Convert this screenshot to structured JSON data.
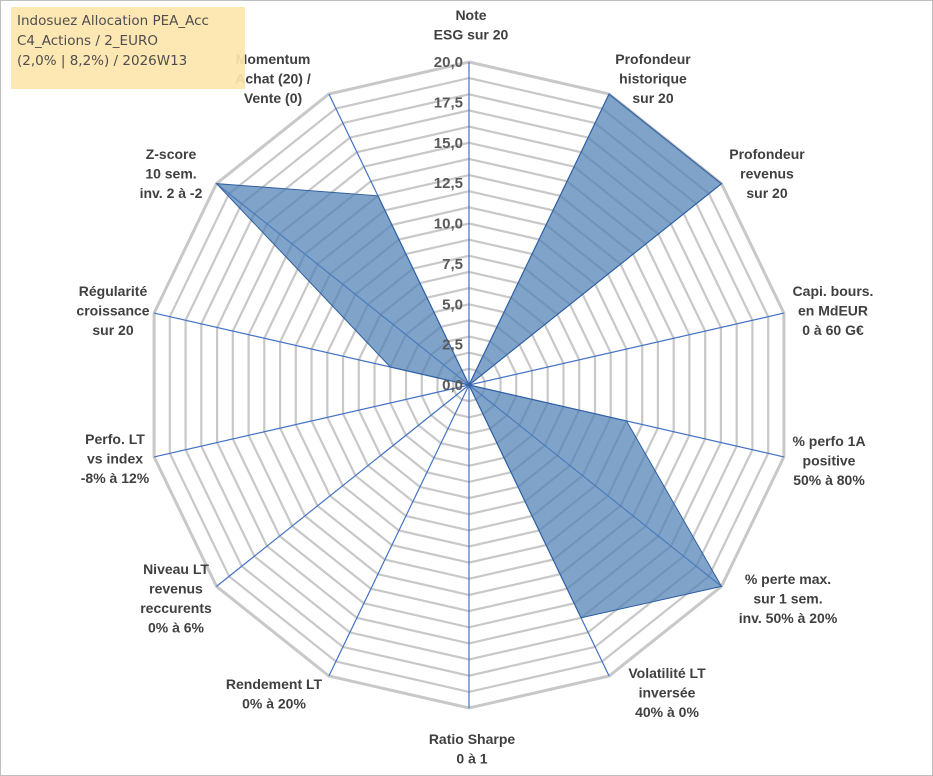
{
  "title": {
    "line1": "Indosuez Allocation PEA_Acc",
    "line2": "C4_Actions / 2_EURO",
    "line3": "(2,0% | 8,2%) / 2026W13"
  },
  "colors": {
    "fill": "#4f7fb5",
    "stroke": "#2f5f9f",
    "grid": "#c8c8c8",
    "spoke": "#4472c4",
    "title_bg": "#fde6ad"
  },
  "chart_data": {
    "type": "radar",
    "rmin": 0,
    "rmax": 20,
    "ticks": [
      "0,0",
      "2,5",
      "5,0",
      "7,5",
      "10,0",
      "12,5",
      "15,0",
      "17,5",
      "20,0"
    ],
    "axes": [
      {
        "label": [
          "Note",
          "ESG sur 20"
        ]
      },
      {
        "label": [
          "Profondeur",
          "historique",
          "sur 20"
        ]
      },
      {
        "label": [
          "Profondeur",
          "revenus",
          "sur 20"
        ]
      },
      {
        "label": [
          "Capi. bours.",
          "en MdEUR",
          "0 à 60 G€"
        ]
      },
      {
        "label": [
          "% perfo 1A",
          "positive",
          "50% à 80%"
        ]
      },
      {
        "label": [
          "% perte max.",
          "sur 1 sem.",
          "inv. 50% à 20%"
        ]
      },
      {
        "label": [
          "Volatilité LT",
          "inversée",
          "40% à 0%"
        ]
      },
      {
        "label": [
          "Ratio Sharpe",
          "0 à 1"
        ]
      },
      {
        "label": [
          "Rendement LT",
          "0% à 20%"
        ]
      },
      {
        "label": [
          "Niveau LT",
          "revenus",
          "reccurents",
          "0% à 6%"
        ]
      },
      {
        "label": [
          "Perfo. LT",
          "vs index",
          "-8% à 12%"
        ]
      },
      {
        "label": [
          "Régularité",
          "croissance",
          "sur 20"
        ]
      },
      {
        "label": [
          "Z-score",
          "10 sem.",
          "inv. 2 à -2"
        ]
      },
      {
        "label": [
          "Momentum",
          "Achat (20) /",
          "Vente (0)"
        ]
      }
    ],
    "series": [
      {
        "values": [
          0,
          20,
          20,
          0,
          10,
          20,
          16,
          0,
          0,
          0,
          0,
          5,
          20,
          13
        ]
      }
    ]
  }
}
